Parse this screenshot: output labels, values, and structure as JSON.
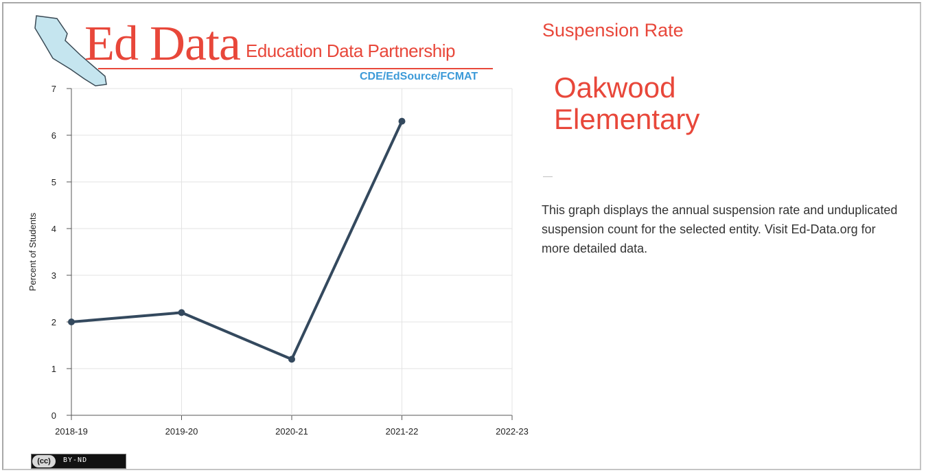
{
  "logo": {
    "wordmark": "Ed Data",
    "subtitle": "Education Data Partnership",
    "partners": "CDE/EdSource/FCMAT",
    "colors": {
      "red": "#e8473a",
      "blue": "#3c9ad8"
    }
  },
  "panel": {
    "title": "Suspension Rate",
    "school": "Oakwood Elementary",
    "divider": "—",
    "description": "This graph displays the annual suspension rate and unduplicated suspension count for the selected entity. Visit Ed-Data.org for more detailed data."
  },
  "license": {
    "badge": "(cc)",
    "text": "BY-ND"
  },
  "chart_data": {
    "type": "line",
    "title": "",
    "xlabel": "",
    "ylabel": "Percent of Students",
    "categories": [
      "2018-19",
      "2019-20",
      "2020-21",
      "2021-22",
      "2022-23"
    ],
    "series": [
      {
        "values": [
          2.0,
          2.2,
          1.2,
          6.3,
          null
        ],
        "color": "#34495e"
      }
    ],
    "ylim": [
      0,
      7
    ],
    "yticks": [
      0,
      1,
      2,
      3,
      4,
      5,
      6,
      7
    ],
    "grid": true
  }
}
